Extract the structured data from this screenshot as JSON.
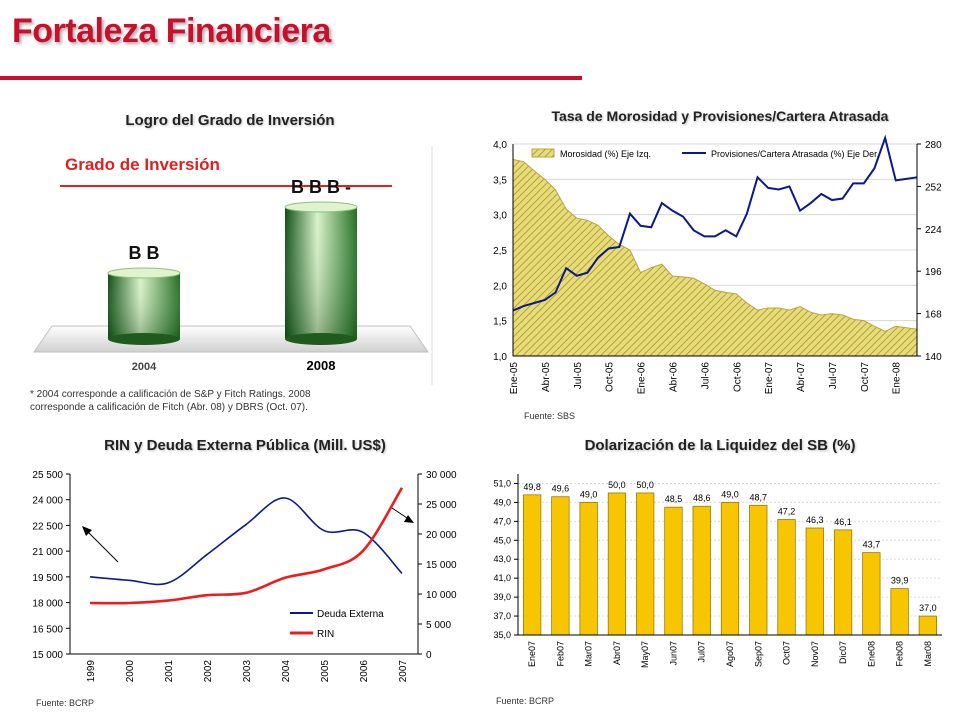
{
  "page": {
    "title": "Fortaleza Financiera"
  },
  "colors": {
    "accent_red": "#c8102e",
    "navy": "#0a1a8a",
    "gold": "#f7c600",
    "hatch": "#c9b84a"
  },
  "grado": {
    "title": "Logro del Grado de Inversión",
    "banner": "Grado de Inversión",
    "note": "* 2004 corresponde a calificación de S&P y Fitch Ratings. 2008 corresponde a calificación  de Fitch (Abr. 08) y DBRS (Oct. 07)."
  },
  "morosidad": {
    "source": "Fuente: SBS"
  },
  "rin": {
    "source": "Fuente: BCRP"
  },
  "dolar": {
    "source": "Fuente: BCRP"
  },
  "chart_data": [
    {
      "type": "bar",
      "title": "Logro del Grado de Inversión",
      "categories": [
        "2004",
        "2008"
      ],
      "ratings": [
        "B B",
        "B B B -"
      ],
      "values": [
        2,
        4
      ]
    },
    {
      "type": "area",
      "title": "Tasa de Morosidad y Provisiones/Cartera Atrasada",
      "x_tick_labels": [
        "Ene-05",
        "Abr-05",
        "Jul-05",
        "Oct-05",
        "Ene-06",
        "Abr-06",
        "Jul-06",
        "Oct-06",
        "Ene-07",
        "Abr-07",
        "Jul-07",
        "Oct-07",
        "Ene-08"
      ],
      "ylim_left": [
        1.0,
        4.0
      ],
      "yticks_left": [
        "1,0",
        "1,5",
        "2,0",
        "2,5",
        "3,0",
        "3,5",
        "4,0"
      ],
      "ylim_right": [
        140,
        280
      ],
      "yticks_right": [
        "140",
        "168",
        "196",
        "224",
        "252",
        "280"
      ],
      "legend_position": "top",
      "series": [
        {
          "name": "Morosidad (%) Eje Izq.",
          "axis": "left",
          "style": "hatched-area",
          "values": [
            3.78,
            3.75,
            3.62,
            3.5,
            3.35,
            3.08,
            2.95,
            2.92,
            2.85,
            2.7,
            2.58,
            2.5,
            2.18,
            2.25,
            2.3,
            2.13,
            2.12,
            2.1,
            2.02,
            1.93,
            1.9,
            1.88,
            1.75,
            1.65,
            1.68,
            1.68,
            1.65,
            1.7,
            1.62,
            1.58,
            1.6,
            1.58,
            1.52,
            1.5,
            1.42,
            1.35,
            1.42,
            1.4,
            1.38
          ]
        },
        {
          "name": "Provisiones/Cartera Atrasada (%) Eje Der.",
          "axis": "right",
          "style": "line",
          "values": [
            170,
            173,
            175,
            177,
            182,
            198,
            193,
            195,
            205,
            211,
            212,
            234,
            226,
            225,
            241,
            236,
            232,
            223,
            219,
            219,
            223,
            219,
            234,
            258,
            251,
            250,
            252,
            236,
            241,
            247,
            243,
            244,
            254,
            254,
            264,
            284,
            256,
            257,
            258
          ]
        }
      ]
    },
    {
      "type": "line",
      "title": "RIN y Deuda Externa Pública (Mill. US$)",
      "x": [
        "1999",
        "2000",
        "2001",
        "2002",
        "2003",
        "2004",
        "2005",
        "2006",
        "2007"
      ],
      "ylim_left": [
        15000,
        25500
      ],
      "yticks_left": [
        "15 000",
        "16 500",
        "18 000",
        "19 500",
        "21 000",
        "22 500",
        "24 000",
        "25 500"
      ],
      "ylim_right": [
        0,
        30000
      ],
      "yticks_right": [
        "0",
        "5 000",
        "10 000",
        "15 000",
        "20 000",
        "25 000",
        "30 000"
      ],
      "legend_position": "bottom-right",
      "series": [
        {
          "name": "Deuda Externa",
          "axis": "left",
          "values": [
            19500,
            19300,
            19150,
            20800,
            22550,
            24100,
            22200,
            22100,
            19700
          ]
        },
        {
          "name": "RIN",
          "axis": "right",
          "values": [
            8500,
            8500,
            8900,
            9800,
            10200,
            12700,
            14100,
            17200,
            27700
          ]
        }
      ]
    },
    {
      "type": "bar",
      "title": "Dolarización de la Liquidez del SB (%)",
      "categories": [
        "Ene07",
        "Feb07",
        "Mar07",
        "Abr07",
        "May07",
        "Jun07",
        "Jul07",
        "Ago07",
        "Sep07",
        "Oct07",
        "Nov07",
        "Dic07",
        "Ene08",
        "Feb08",
        "Mar08"
      ],
      "values": [
        49.8,
        49.6,
        49.0,
        50.0,
        50.0,
        48.5,
        48.6,
        49.0,
        48.7,
        47.2,
        46.3,
        46.1,
        43.7,
        39.9,
        37.0
      ],
      "value_labels": [
        "49,8",
        "49,6",
        "49,0",
        "50,0",
        "50,0",
        "48,5",
        "48,6",
        "49,0",
        "48,7",
        "47,2",
        "46,3",
        "46,1",
        "43,7",
        "39,9",
        "37,0"
      ],
      "ylim": [
        35.0,
        52.0
      ],
      "yticks": [
        "35,0",
        "37,0",
        "39,0",
        "41,0",
        "43,0",
        "45,0",
        "47,0",
        "49,0",
        "51,0"
      ]
    }
  ]
}
